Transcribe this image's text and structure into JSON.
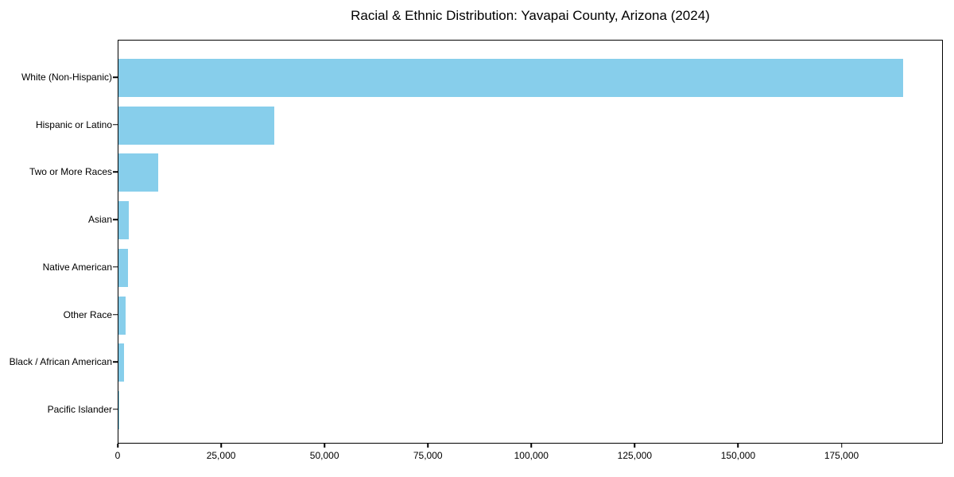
{
  "chart_data": {
    "type": "bar",
    "orientation": "horizontal",
    "title": "Racial & Ethnic Distribution: Yavapai County, Arizona (2024)",
    "categories": [
      "White (Non-Hispanic)",
      "Hispanic or Latino",
      "Two or More Races",
      "Asian",
      "Native American",
      "Other Race",
      "Black / African American",
      "Pacific Islander"
    ],
    "values": [
      190000,
      37800,
      9700,
      2500,
      2400,
      1700,
      1300,
      150
    ],
    "xlabel": "",
    "ylabel": "",
    "xlim": [
      0,
      199500
    ],
    "x_ticks": [
      0,
      25000,
      50000,
      75000,
      100000,
      125000,
      150000,
      175000
    ],
    "x_tick_labels": [
      "0",
      "25,000",
      "50,000",
      "75,000",
      "100,000",
      "125,000",
      "150,000",
      "175,000"
    ],
    "bar_color": "#87CEEB",
    "axis_color": "#000000",
    "grid": false,
    "legend": null
  }
}
